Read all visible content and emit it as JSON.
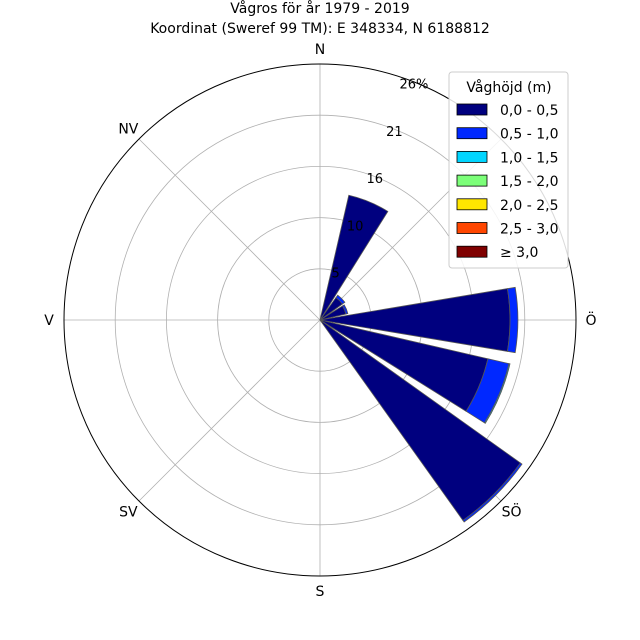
{
  "chart_data": {
    "type": "windrose",
    "title": "Vågros för år 1979 - 2019",
    "subtitle": "Koordinat (Sweref 99 TM): E 348334, N 6188812",
    "directions": [
      "N",
      "NV",
      "V",
      "SV",
      "S",
      "SÖ",
      "Ö"
    ],
    "radial_ticks": [
      "5",
      "10",
      "16",
      "21",
      "26%"
    ],
    "radial_tick_values": [
      5.2,
      10.4,
      15.6,
      20.8,
      26
    ],
    "rmax": 26,
    "legend": {
      "title": "Våghöjd (m)",
      "placement": "top-right",
      "entries": [
        {
          "label": "0,0 - 0,5",
          "color": "#00007f"
        },
        {
          "label": "0,5 - 1,0",
          "color": "#0028ff"
        },
        {
          "label": "1,0 - 1,5",
          "color": "#00d5ff"
        },
        {
          "label": "1,5 - 2,0",
          "color": "#7cff79"
        },
        {
          "label": "2,0 - 2,5",
          "color": "#ffe600"
        },
        {
          "label": "2,5 - 3,0",
          "color": "#ff4600"
        },
        {
          "label": "≥ 3,0",
          "color": "#7f0000"
        }
      ]
    },
    "bins": [
      {
        "sector_deg": 22.5,
        "stacks": [
          13.0
        ]
      },
      {
        "sector_deg": 45.0,
        "stacks": [
          2.8,
          0.3
        ]
      },
      {
        "sector_deg": 67.5,
        "stacks": [
          2.7,
          0.2
        ]
      },
      {
        "sector_deg": 90.0,
        "stacks": [
          19.3,
          0.8
        ]
      },
      {
        "sector_deg": 112.5,
        "stacks": [
          17.5,
          2.2,
          0.1
        ]
      },
      {
        "sector_deg": 135.0,
        "stacks": [
          25.0,
          0.2
        ]
      }
    ]
  }
}
